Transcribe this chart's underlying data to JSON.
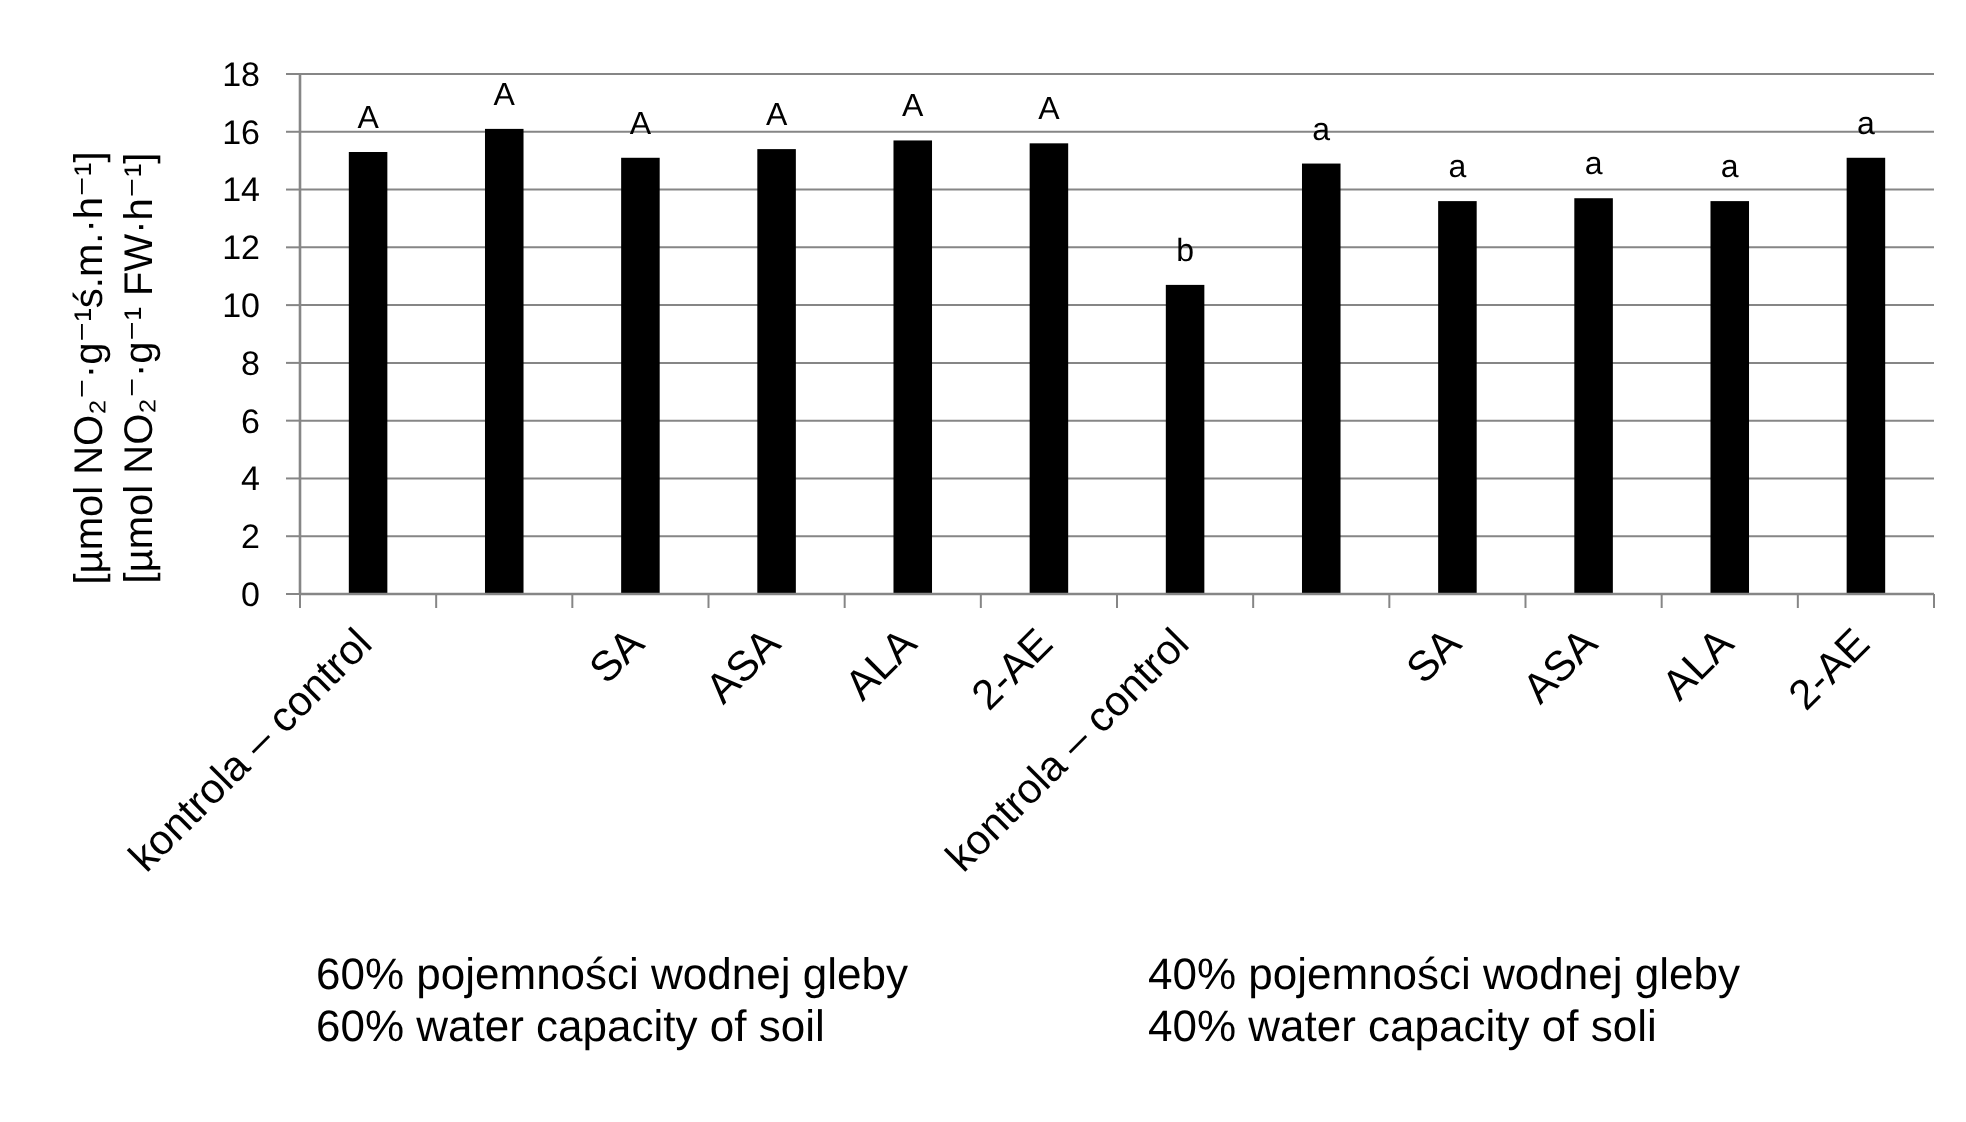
{
  "chart_data": {
    "type": "bar",
    "categories": [
      "kontrola – control",
      null,
      "SA",
      "ASA",
      "ALA",
      "2-AE",
      "kontrola – control",
      null,
      "SA",
      "ASA",
      "ALA",
      "2-AE"
    ],
    "values": [
      15.3,
      16.1,
      15.1,
      15.4,
      15.7,
      15.6,
      10.7,
      14.9,
      13.6,
      13.7,
      13.6,
      15.1
    ],
    "value_labels": [
      "A",
      "A",
      "A",
      "A",
      "A",
      "A",
      "b",
      "a",
      "a",
      "a",
      "a",
      "a"
    ],
    "color": "#000000",
    "ylabel": "[µmol NO₂⁻·g⁻¹ś.m.·h⁻¹]\n[µmol NO₂⁻·g⁻¹ FW·h⁻¹]",
    "ylim": [
      0,
      18
    ],
    "yticks": [
      0,
      2,
      4,
      6,
      8,
      10,
      12,
      14,
      16,
      18
    ],
    "grid": "y",
    "annotations": [
      "60% pojemności wodnej gleby",
      "60% water capacity of soil",
      "40% pojemności wodnej gleby",
      "40% water capacity of soli"
    ]
  }
}
